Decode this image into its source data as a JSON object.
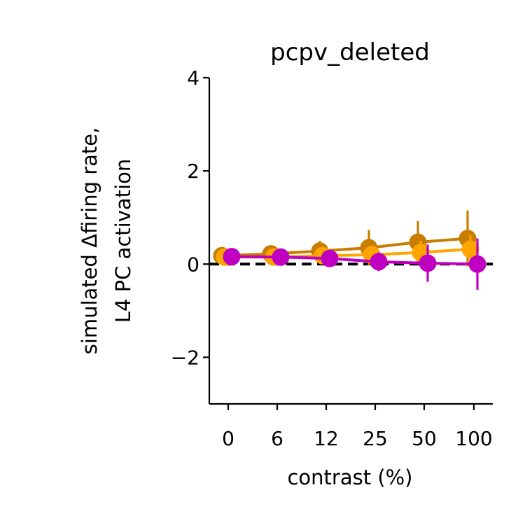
{
  "chart_data": {
    "type": "line",
    "title": "pcpv_deleted",
    "xlabel": "contrast (%)",
    "ylabel_lines": [
      "simulated Δfiring rate,",
      "L4 PC activation"
    ],
    "categories": [
      "0",
      "6",
      "12",
      "25",
      "50",
      "100"
    ],
    "ylim": [
      -3,
      4
    ],
    "yticks": [
      4,
      2,
      0,
      -2
    ],
    "ytick_labels": [
      "4",
      "2",
      "0",
      "−2"
    ],
    "grid": false,
    "reference_line": {
      "y": 0,
      "style": "dashed",
      "color": "#000000"
    },
    "series": [
      {
        "color": "#c87d00",
        "values": [
          0.18,
          0.22,
          0.28,
          0.35,
          0.47,
          0.55
        ],
        "errors": [
          0.12,
          0.15,
          0.22,
          0.38,
          0.45,
          0.6
        ]
      },
      {
        "color": "#ffa500",
        "values": [
          0.15,
          0.15,
          0.18,
          0.2,
          0.25,
          0.32
        ],
        "errors": [
          0.12,
          0.12,
          0.15,
          0.2,
          0.25,
          0.3
        ]
      },
      {
        "color": "#c000c0",
        "values": [
          0.16,
          0.15,
          0.12,
          0.05,
          0.02,
          0.0
        ],
        "errors": [
          0.12,
          0.15,
          0.15,
          0.2,
          0.4,
          0.55
        ]
      }
    ]
  }
}
